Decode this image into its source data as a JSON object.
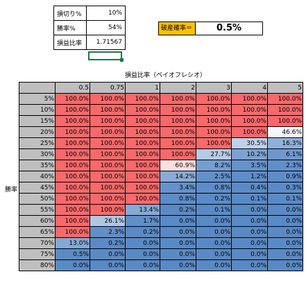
{
  "inputs": [
    {
      "label": "損切り%",
      "value": "10%"
    },
    {
      "label": "勝率%",
      "value": "54%"
    },
    {
      "label": "損益比率",
      "value": "1.71567"
    }
  ],
  "ruin": {
    "label": "破産確率＝",
    "value": "0.5%"
  },
  "table": {
    "title": "損益比率（ペイオフレシオ）",
    "row_axis_label": "勝率",
    "columns": [
      "0.5",
      "0.75",
      "1",
      "2",
      "3",
      "4",
      "5"
    ],
    "rows": [
      {
        "label": "5%",
        "cells": [
          "100.0%",
          "100.0%",
          "100.0%",
          "100.0%",
          "100.0%",
          "100.0%",
          "100.0%"
        ]
      },
      {
        "label": "10%",
        "cells": [
          "100.0%",
          "100.0%",
          "100.0%",
          "100.0%",
          "100.0%",
          "100.0%",
          "100.0%"
        ]
      },
      {
        "label": "15%",
        "cells": [
          "100.0%",
          "100.0%",
          "100.0%",
          "100.0%",
          "100.0%",
          "100.0%",
          "100.0%"
        ]
      },
      {
        "label": "20%",
        "cells": [
          "100.0%",
          "100.0%",
          "100.0%",
          "100.0%",
          "100.0%",
          "100.0%",
          "46.6%"
        ]
      },
      {
        "label": "25%",
        "cells": [
          "100.0%",
          "100.0%",
          "100.0%",
          "100.0%",
          "100.0%",
          "30.5%",
          "16.3%"
        ]
      },
      {
        "label": "30%",
        "cells": [
          "100.0%",
          "100.0%",
          "100.0%",
          "100.0%",
          "27.7%",
          "10.2%",
          "6.1%"
        ]
      },
      {
        "label": "35%",
        "cells": [
          "100.0%",
          "100.0%",
          "100.0%",
          "60.9%",
          "8.2%",
          "3.5%",
          "2.3%"
        ]
      },
      {
        "label": "40%",
        "cells": [
          "100.0%",
          "100.0%",
          "100.0%",
          "14.2%",
          "2.5%",
          "1.2%",
          "0.9%"
        ]
      },
      {
        "label": "45%",
        "cells": [
          "100.0%",
          "100.0%",
          "100.0%",
          "3.4%",
          "0.8%",
          "0.4%",
          "0.3%"
        ]
      },
      {
        "label": "50%",
        "cells": [
          "100.0%",
          "100.0%",
          "100.0%",
          "0.8%",
          "0.2%",
          "0.1%",
          "0.1%"
        ]
      },
      {
        "label": "55%",
        "cells": [
          "100.0%",
          "100.0%",
          "13.4%",
          "0.2%",
          "0.1%",
          "0.0%",
          "0.0%"
        ]
      },
      {
        "label": "60%",
        "cells": [
          "100.0%",
          "26.1%",
          "1.7%",
          "0.0%",
          "0.0%",
          "0.0%",
          "0.0%"
        ]
      },
      {
        "label": "65%",
        "cells": [
          "100.0%",
          "2.3%",
          "0.2%",
          "0.0%",
          "0.0%",
          "0.0%",
          "0.0%"
        ]
      },
      {
        "label": "70%",
        "cells": [
          "13.0%",
          "0.2%",
          "0.0%",
          "0.0%",
          "0.0%",
          "0.0%",
          "0.0%"
        ]
      },
      {
        "label": "75%",
        "cells": [
          "0.5%",
          "0.0%",
          "0.0%",
          "0.0%",
          "0.0%",
          "0.0%",
          "0.0%"
        ]
      },
      {
        "label": "80%",
        "cells": [
          "0.0%",
          "0.0%",
          "0.0%",
          "0.0%",
          "0.0%",
          "0.0%",
          "0.0%"
        ]
      }
    ]
  },
  "colors": {
    "header_gray": "#bfbfbf",
    "ruin_label_bg": "#ffc000",
    "selection": "#217346",
    "heat_red": "#f8696b",
    "heat_white": "#ffffff",
    "heat_blue": "#5a8ac6"
  }
}
